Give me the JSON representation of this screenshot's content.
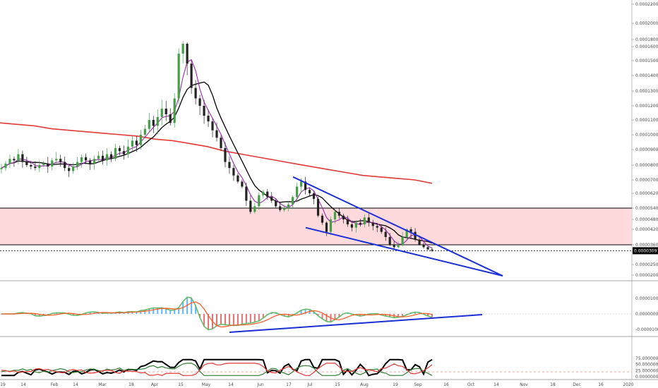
{
  "chart_data": [
    {
      "panel": "price",
      "type": "candlestick",
      "timeframe": "daily",
      "y_scale": "linear",
      "ylim": [
        1.95e-05,
        0.000221
      ],
      "y_ticks": [
        2e-05,
        2.5e-05,
        3e-05,
        3.6e-05,
        4.2e-05,
        4.8e-05,
        5.4e-05,
        6.2e-05,
        7e-05,
        8e-05,
        9e-05,
        0.0001,
        0.00011,
        0.00012,
        0.00013,
        0.00014,
        0.00015,
        0.00016,
        0.00018,
        0.0002,
        0.00022
      ],
      "y_tick_labels": [
        "0.00002000",
        "0.00002500",
        "0.00003000",
        "0.00003600",
        "0.00004200",
        "0.00004800",
        "0.00005400",
        "0.00006200",
        "0.00007000",
        "0.00008000",
        "0.00009000",
        "0.00010000",
        "0.00011000",
        "0.00012000",
        "0.00013000",
        "0.00014000",
        "0.00015000",
        "0.00016000",
        "0.00018000",
        "0.00020000",
        "0.00022000"
      ],
      "x_ticks": [
        "19",
        "14",
        "Feb",
        "14",
        "Mar",
        "18",
        "Apr",
        "15",
        "May",
        "14",
        "Jun",
        "17",
        "Jul",
        "15",
        "Aug",
        "19",
        "Sep",
        "16",
        "Oct",
        "14",
        "Nov",
        "18",
        "Dec",
        "16",
        "2020"
      ],
      "last_price": 3.097e-05,
      "last_price_label": "0.00003097",
      "candles_close": [
        7.8e-05,
        8.1e-05,
        8.4e-05,
        8.3e-05,
        8.7e-05,
        8.2e-05,
        8e-05,
        7.9e-05,
        7.8e-05,
        8e-05,
        8.1e-05,
        7.9e-05,
        8.3e-05,
        8.4e-05,
        8.2e-05,
        7.8e-05,
        7.6e-05,
        7.9e-05,
        8.2e-05,
        8.5e-05,
        8.3e-05,
        8.1e-05,
        8.4e-05,
        8.6e-05,
        8.3e-05,
        8.7e-05,
        8.4e-05,
        9.1e-05,
        8.9e-05,
        8.7e-05,
        9.2e-05,
        9.6e-05,
        9.3e-05,
        0.0001,
        0.000104,
        0.00011,
        0.000106,
        0.000112,
        0.000118,
        0.000114,
        0.000108,
        0.000125,
        0.000155,
        0.000168,
        0.000148,
        0.000132,
        0.000125,
        0.00012,
        0.000113,
        0.000109,
        0.000103,
        9.8e-05,
        9.1e-05,
        8.2e-05,
        7.8e-05,
        7.3e-05,
        6.9e-05,
        6.6e-05,
        5.8e-05,
        5.2e-05,
        5.5e-05,
        6.1e-05,
        6.3e-05,
        6e-05,
        5.8e-05,
        5.5e-05,
        5.3e-05,
        5.4e-05,
        5.6e-05,
        6e-05,
        6.6e-05,
        6.9e-05,
        6.4e-05,
        6.2e-05,
        5.9e-05,
        5e-05,
        4.6e-05,
        4.1e-05,
        4.8e-05,
        5.2e-05,
        5e-05,
        4.8e-05,
        4.5e-05,
        4.3e-05,
        4.6e-05,
        4.5e-05,
        4.9e-05,
        4.6e-05,
        4.4e-05,
        4.3e-05,
        4.1e-05,
        3.9e-05,
        3.6e-05,
        3.4e-05,
        3.6e-05,
        3.9e-05,
        4.2e-05,
        4.1e-05,
        3.8e-05,
        3.6e-05,
        3.4e-05,
        3.2e-05,
        3.1e-05
      ],
      "overlays": [
        {
          "name": "",
          "color": "#e53935",
          "values": [
            0.000108,
            0.000107,
            0.000106,
            0.000104,
            0.000103,
            0.000102,
            0.000101,
            0.0001,
            9.9e-05,
            9.7e-05,
            9.6e-05,
            9.4e-05,
            9.2e-05,
            8.9e-05,
            8.7e-05,
            8.5e-05,
            8.3e-05,
            8.1e-05,
            7.9e-05,
            7.7e-05,
            7.5e-05,
            7.3e-05,
            7.2e-05,
            7.1e-05,
            7e-05,
            6.8e-05
          ]
        },
        {
          "name": "",
          "color": "#000000"
        },
        {
          "name": "",
          "color": "#9c27b0"
        }
      ],
      "zone": {
        "from": 3.6e-05,
        "to": 5.4e-05,
        "color": "#ffcdd2"
      },
      "annotations": [
        "falling wedge",
        "horizontal lines at 0.00005400 and 0.00003600",
        "dotted line at last price 0.00003097"
      ]
    },
    {
      "panel": "oscillator",
      "type": "histogram+lines",
      "ylim": [
        -1.25e-05,
        1.9e-05
      ],
      "y_ticks": [
        1e-05,
        0,
        -1e-05
      ],
      "y_tick_labels": [
        "0.00001000",
        "0.00000000",
        "-0.00001000"
      ],
      "annotations": [
        "rising trendline under histogram lows"
      ]
    },
    {
      "panel": "directional index",
      "type": "line",
      "ylim": [
        0,
        75
      ],
      "y_ticks": [
        75,
        50,
        25,
        0
      ],
      "y_tick_labels": [
        "75.00000000",
        "50.00000000",
        "25.00000000",
        "0.00000000"
      ],
      "series": [
        {
          "name": "",
          "color": "#000000"
        },
        {
          "name": "",
          "color": "#2e7d32"
        },
        {
          "name": "",
          "color": "#e53935"
        }
      ]
    }
  ]
}
